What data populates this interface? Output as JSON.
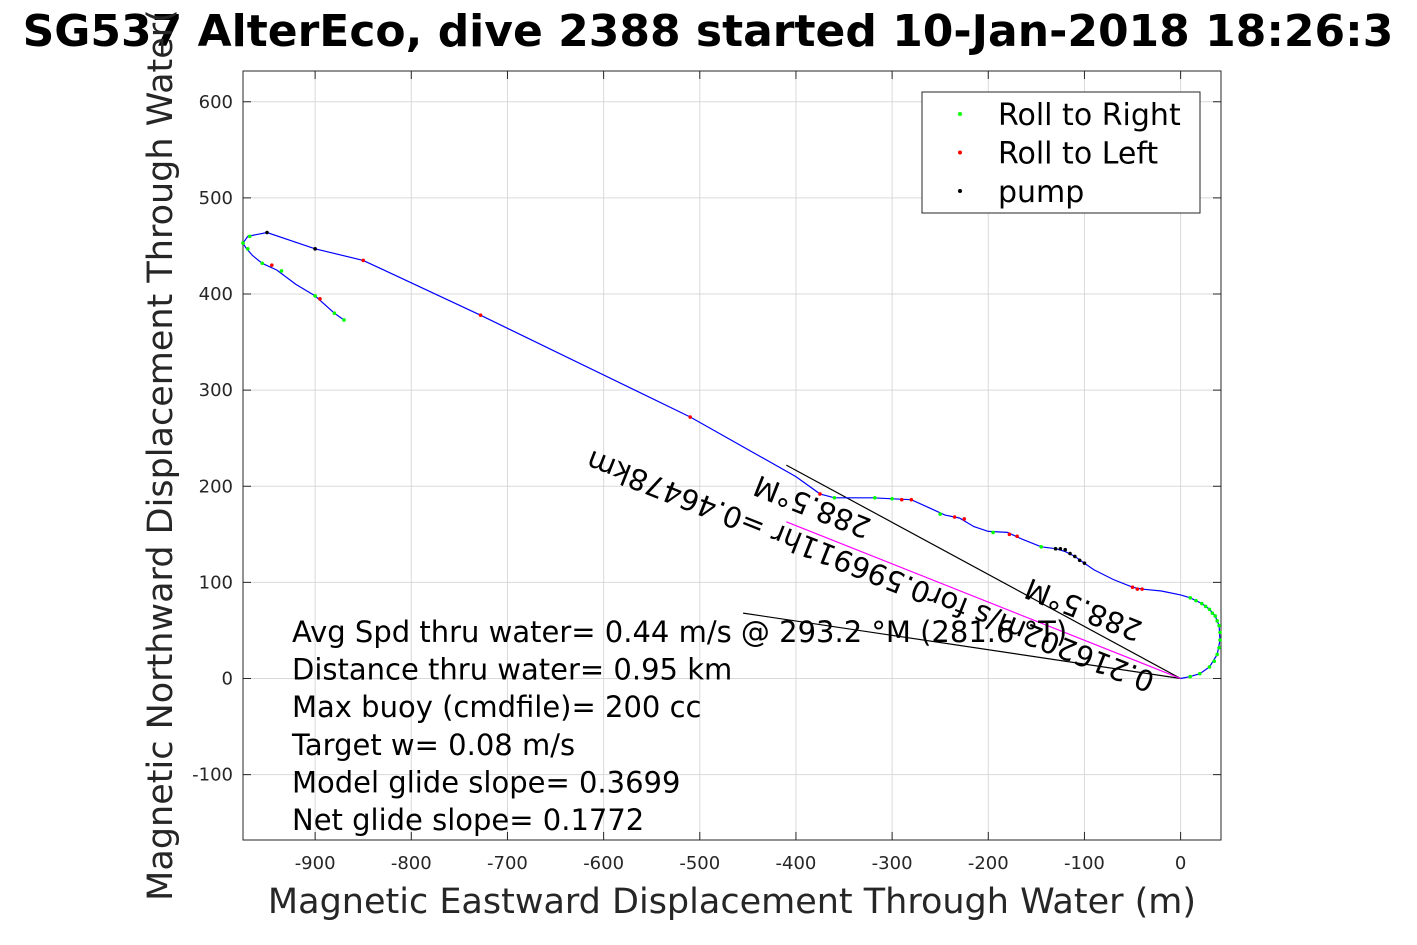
{
  "chart_data": {
    "type": "scatter",
    "title": "SG537 AlterEco, dive 2388 started 10-Jan-2018 18:26:3",
    "xlabel": "Magnetic Eastward Displacement Through Water (m)",
    "ylabel": "Magnetic Northward Displacement Through Water(",
    "xlim": [
      -975,
      42
    ],
    "ylim": [
      -168,
      632
    ],
    "xticks": [
      -900,
      -800,
      -700,
      -600,
      -500,
      -400,
      -300,
      -200,
      -100,
      0
    ],
    "yticks": [
      -100,
      0,
      100,
      200,
      300,
      400,
      500,
      600
    ],
    "grid": true,
    "legend_position": "top-right",
    "legend": [
      {
        "label": "Roll to Right",
        "color": "#00ff00"
      },
      {
        "label": "Roll to Left",
        "color": "#ff0000"
      },
      {
        "label": "pump",
        "color": "#000000"
      }
    ],
    "series": [
      {
        "type": "line",
        "color": "#0000ff",
        "points": [
          [
            0,
            0
          ],
          [
            10,
            2
          ],
          [
            20,
            5
          ],
          [
            30,
            12
          ],
          [
            38,
            25
          ],
          [
            41,
            40
          ],
          [
            40,
            55
          ],
          [
            36,
            65
          ],
          [
            30,
            72
          ],
          [
            22,
            78
          ],
          [
            10,
            84
          ],
          [
            0,
            87
          ],
          [
            -20,
            91
          ],
          [
            -40,
            93
          ],
          [
            -50,
            95
          ],
          [
            -70,
            103
          ],
          [
            -90,
            113
          ],
          [
            -100,
            120
          ],
          [
            -110,
            127
          ],
          [
            -120,
            132
          ],
          [
            -130,
            135
          ],
          [
            -145,
            137
          ],
          [
            -165,
            145
          ],
          [
            -180,
            152
          ],
          [
            -200,
            153
          ],
          [
            -215,
            158
          ],
          [
            -230,
            167
          ],
          [
            -245,
            170
          ],
          [
            -260,
            177
          ],
          [
            -280,
            186
          ],
          [
            -300,
            187
          ],
          [
            -320,
            188
          ],
          [
            -340,
            188
          ],
          [
            -360,
            188
          ],
          [
            -375,
            192
          ],
          [
            -400,
            210
          ],
          [
            -510,
            272
          ],
          [
            -728,
            378
          ],
          [
            -850,
            435
          ],
          [
            -900,
            447
          ],
          [
            -950,
            464
          ],
          [
            -970,
            460
          ],
          [
            -975,
            453
          ],
          [
            -972,
            448
          ],
          [
            -965,
            440
          ],
          [
            -955,
            432
          ],
          [
            -940,
            425
          ],
          [
            -920,
            410
          ],
          [
            -900,
            398
          ],
          [
            -880,
            380
          ],
          [
            -870,
            373
          ]
        ]
      },
      {
        "name": "Roll to Right",
        "type": "markers",
        "color": "#00ff00",
        "points": [
          [
            10,
            2
          ],
          [
            20,
            5
          ],
          [
            30,
            12
          ],
          [
            35,
            18
          ],
          [
            38,
            25
          ],
          [
            40,
            32
          ],
          [
            41,
            40
          ],
          [
            41,
            48
          ],
          [
            40,
            55
          ],
          [
            38,
            60
          ],
          [
            36,
            65
          ],
          [
            33,
            68
          ],
          [
            30,
            72
          ],
          [
            26,
            75
          ],
          [
            22,
            78
          ],
          [
            16,
            81
          ],
          [
            10,
            84
          ],
          [
            -130,
            135
          ],
          [
            -145,
            137
          ],
          [
            -195,
            152
          ],
          [
            -250,
            171
          ],
          [
            -300,
            187
          ],
          [
            -318,
            188
          ],
          [
            -360,
            188
          ],
          [
            -975,
            453
          ],
          [
            -970,
            447
          ],
          [
            -968,
            460
          ],
          [
            -955,
            432
          ],
          [
            -900,
            398
          ],
          [
            -880,
            380
          ],
          [
            -870,
            373
          ],
          [
            -935,
            424
          ]
        ]
      },
      {
        "name": "Roll to Left",
        "type": "markers",
        "color": "#ff0000",
        "points": [
          [
            -45,
            93
          ],
          [
            -50,
            95
          ],
          [
            -40,
            93
          ],
          [
            -170,
            148
          ],
          [
            -178,
            150
          ],
          [
            -225,
            166
          ],
          [
            -235,
            168
          ],
          [
            -280,
            186
          ],
          [
            -290,
            186
          ],
          [
            -375,
            192
          ],
          [
            -510,
            272
          ],
          [
            -728,
            378
          ],
          [
            -850,
            435
          ],
          [
            -945,
            430
          ],
          [
            -895,
            395
          ]
        ]
      },
      {
        "name": "pump",
        "type": "markers",
        "color": "#000000",
        "points": [
          [
            -100,
            120
          ],
          [
            -105,
            123
          ],
          [
            -110,
            127
          ],
          [
            -115,
            130
          ],
          [
            -120,
            134
          ],
          [
            -125,
            135
          ],
          [
            -130,
            135
          ],
          [
            -950,
            464
          ],
          [
            -900,
            447
          ]
        ]
      }
    ],
    "annotation_lines": [
      {
        "color": "#000000",
        "points": [
          [
            0,
            0
          ],
          [
            -410,
            222
          ]
        ]
      },
      {
        "color": "#000000",
        "points": [
          [
            0,
            0
          ],
          [
            -455,
            68
          ]
        ]
      },
      {
        "color": "#ff00ff",
        "points": [
          [
            0,
            0
          ],
          [
            -410,
            163
          ]
        ]
      }
    ],
    "rotated_labels": [
      {
        "text": "0.216202m/s for0.596911hr =0.46478km",
        "x": -25,
        "y": 5,
        "angle": 201.6
      },
      {
        "text": "288.5°M",
        "x": -38,
        "y": 58,
        "angle": 201.6
      },
      {
        "text": "288.5°M",
        "x": -320,
        "y": 165,
        "angle": 201.6
      }
    ],
    "stats": [
      "Avg Spd thru water=  0.44 m/s @ 293.2 °M (281.6 °T)",
      "Distance thru water=  0.95 km",
      "Max buoy (cmdfile)= 200 cc",
      "Target w= 0.08 m/s",
      "Model glide slope= 0.3699",
      "Net glide slope= 0.1772"
    ]
  }
}
